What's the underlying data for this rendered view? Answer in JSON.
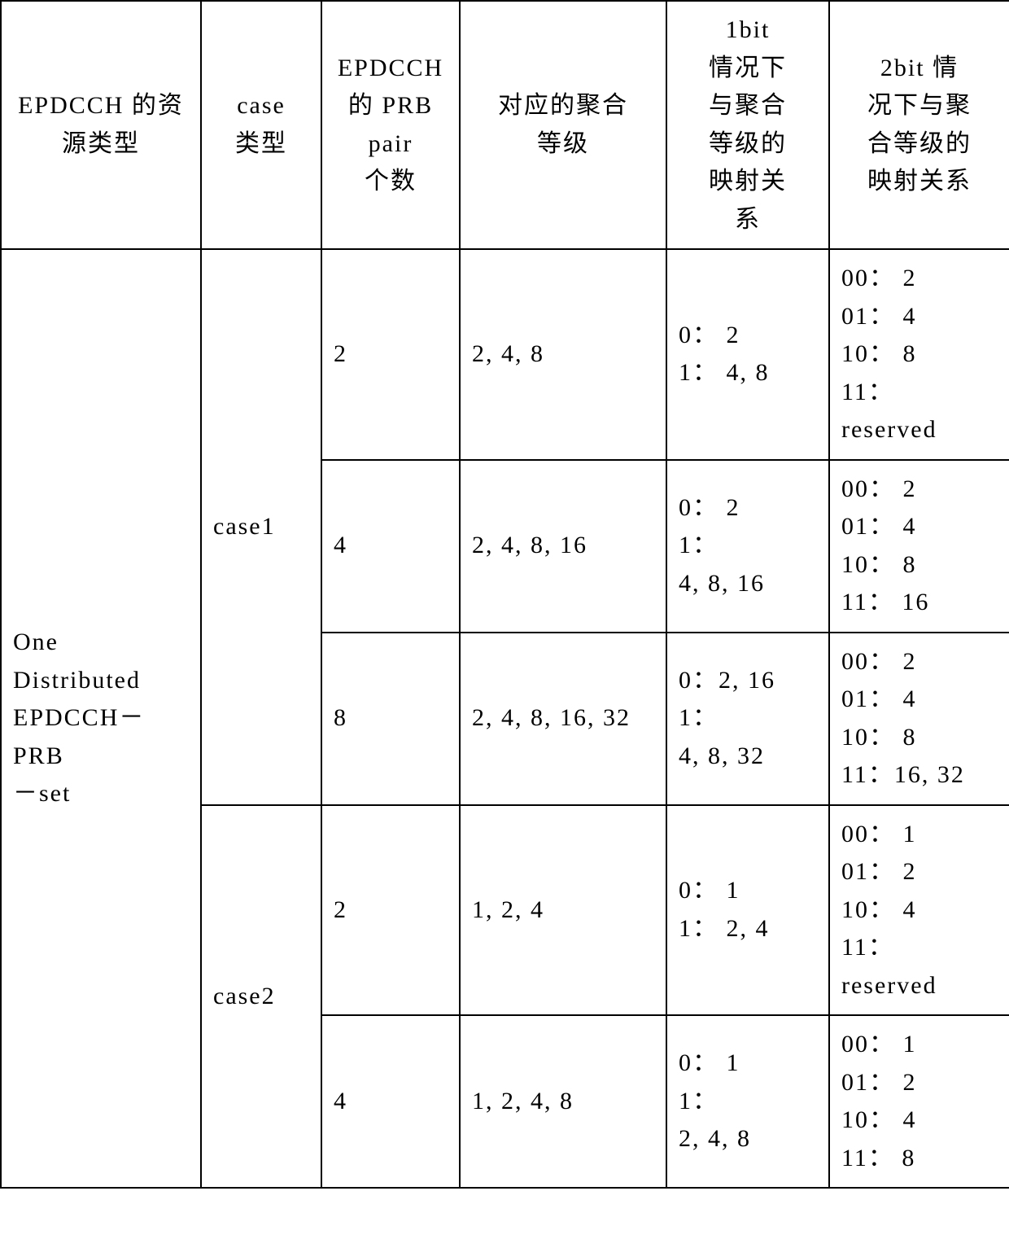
{
  "headers": {
    "c1": "EPDCCH 的资\n源类型",
    "c2": "case\n类型",
    "c3": "EPDCCH\n的 PRB\npair\n个数",
    "c4": "对应的聚合\n等级",
    "c5": "1bit\n情况下\n与聚合\n等级的\n映射关\n系",
    "c6": "2bit 情\n况下与聚\n合等级的\n映射关系"
  },
  "resource_type": "One\nDistributed\nEPDCCH－PRB\n－set",
  "case_labels": {
    "case1": "case1",
    "case2": "case2"
  },
  "rows": [
    {
      "prb": "2",
      "agg": "2, 4, 8",
      "map1": "0： 2\n1： 4, 8",
      "map2": "00： 2\n01： 4\n10： 8\n11：\nreserved"
    },
    {
      "prb": "4",
      "agg": "2, 4, 8, 16",
      "map1": "0： 2\n1：\n4, 8, 16",
      "map2": "00： 2\n01： 4\n10： 8\n11： 16"
    },
    {
      "prb": "8",
      "agg": "2, 4, 8, 16, 32",
      "map1": "0：2, 16\n1：\n4, 8, 32",
      "map2": "00： 2\n01： 4\n10： 8\n11：16, 32"
    },
    {
      "prb": "2",
      "agg": "1, 2, 4",
      "map1": "0： 1\n1： 2, 4",
      "map2": "00： 1\n01： 2\n10： 4\n11：\nreserved"
    },
    {
      "prb": "4",
      "agg": "1, 2, 4, 8",
      "map1": "0： 1\n1：\n2, 4, 8",
      "map2": "00： 1\n01： 2\n10： 4\n11： 8"
    }
  ]
}
